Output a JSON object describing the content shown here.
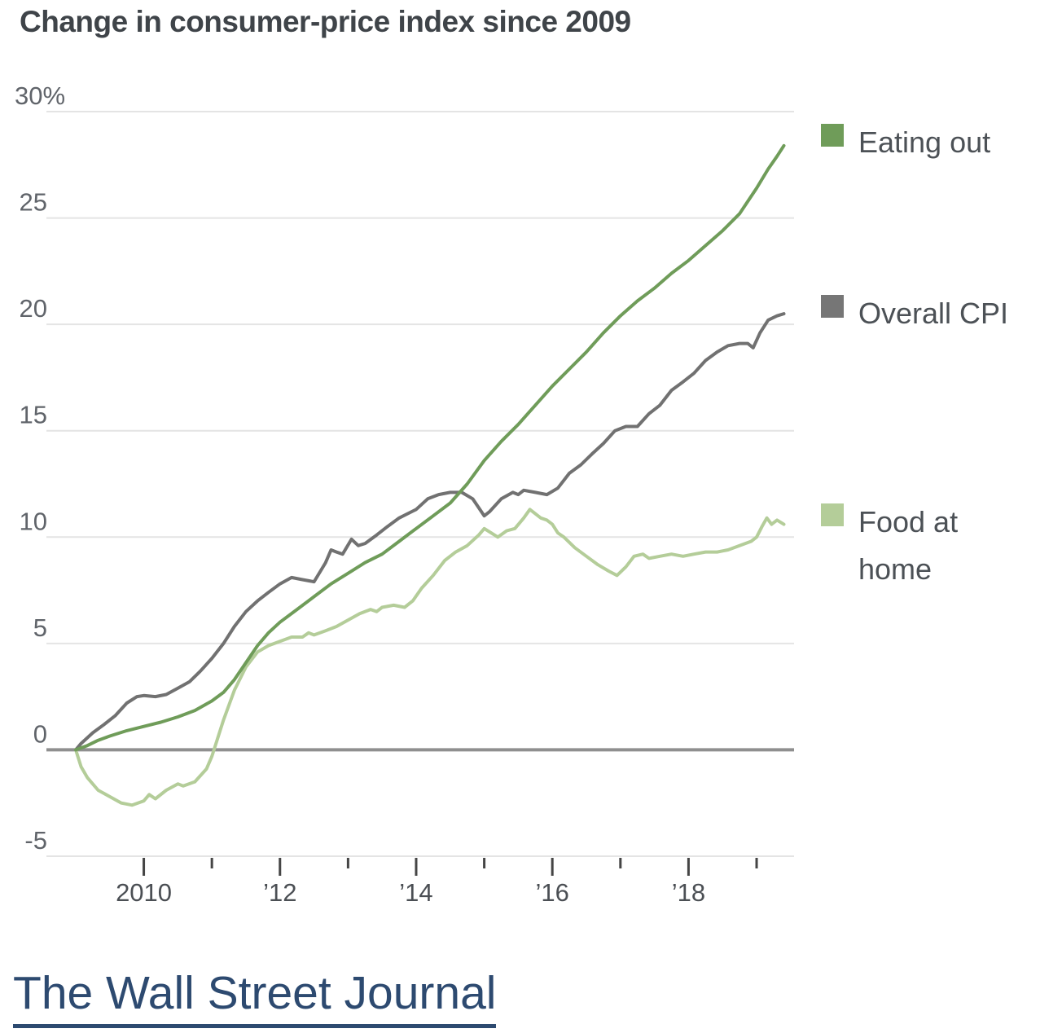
{
  "page": {
    "source_link_label": "The Wall Street Journal"
  },
  "legend": {
    "items": [
      {
        "label": "Eating out",
        "color": "#6f9c59"
      },
      {
        "label": "Overall CPI",
        "color": "#767676"
      },
      {
        "label": "Food at home",
        "color": "#b4cd99"
      }
    ]
  },
  "chart_data": {
    "type": "line",
    "title": "Change in consumer-price index since 2009",
    "xlabel": "",
    "ylabel": "",
    "xlim": [
      2008.57,
      2019.55
    ],
    "ylim": [
      -5,
      30
    ],
    "grid": true,
    "legend_position": "right",
    "gridline_color": "#e4e4e4",
    "zero_line_color": "#8f8f8f",
    "tick_color": "#454545",
    "yticks": [
      {
        "value": 30,
        "label": "30%"
      },
      {
        "value": 25,
        "label": "25"
      },
      {
        "value": 20,
        "label": "20"
      },
      {
        "value": 15,
        "label": "15"
      },
      {
        "value": 10,
        "label": "10"
      },
      {
        "value": 5,
        "label": "5"
      },
      {
        "value": 0,
        "label": "0"
      },
      {
        "value": -5,
        "label": "-5"
      }
    ],
    "xticks": [
      {
        "value": 2010,
        "label": "2010",
        "major": true
      },
      {
        "value": 2011,
        "label": "",
        "major": false
      },
      {
        "value": 2012,
        "label": "’12",
        "major": true
      },
      {
        "value": 2013,
        "label": "",
        "major": false
      },
      {
        "value": 2014,
        "label": "’14",
        "major": true
      },
      {
        "value": 2015,
        "label": "",
        "major": false
      },
      {
        "value": 2016,
        "label": "’16",
        "major": true
      },
      {
        "value": 2017,
        "label": "",
        "major": false
      },
      {
        "value": 2018,
        "label": "’18",
        "major": true
      },
      {
        "value": 2019,
        "label": "",
        "major": false
      }
    ],
    "series": [
      {
        "name": "Eating out",
        "color": "#6f9c59",
        "points": [
          [
            2009.0,
            0
          ],
          [
            2009.17,
            0.2
          ],
          [
            2009.33,
            0.45
          ],
          [
            2009.5,
            0.65
          ],
          [
            2009.75,
            0.9
          ],
          [
            2010.0,
            1.1
          ],
          [
            2010.25,
            1.3
          ],
          [
            2010.5,
            1.55
          ],
          [
            2010.75,
            1.85
          ],
          [
            2011.0,
            2.3
          ],
          [
            2011.17,
            2.7
          ],
          [
            2011.33,
            3.3
          ],
          [
            2011.5,
            4.1
          ],
          [
            2011.67,
            4.9
          ],
          [
            2011.83,
            5.5
          ],
          [
            2012.0,
            6.0
          ],
          [
            2012.25,
            6.6
          ],
          [
            2012.5,
            7.2
          ],
          [
            2012.75,
            7.8
          ],
          [
            2013.0,
            8.3
          ],
          [
            2013.25,
            8.8
          ],
          [
            2013.5,
            9.2
          ],
          [
            2013.75,
            9.8
          ],
          [
            2014.0,
            10.4
          ],
          [
            2014.25,
            11.0
          ],
          [
            2014.5,
            11.6
          ],
          [
            2014.75,
            12.5
          ],
          [
            2015.0,
            13.6
          ],
          [
            2015.25,
            14.5
          ],
          [
            2015.5,
            15.3
          ],
          [
            2015.75,
            16.2
          ],
          [
            2016.0,
            17.1
          ],
          [
            2016.25,
            17.9
          ],
          [
            2016.5,
            18.7
          ],
          [
            2016.75,
            19.6
          ],
          [
            2017.0,
            20.4
          ],
          [
            2017.25,
            21.1
          ],
          [
            2017.5,
            21.7
          ],
          [
            2017.75,
            22.4
          ],
          [
            2018.0,
            23.0
          ],
          [
            2018.25,
            23.7
          ],
          [
            2018.5,
            24.4
          ],
          [
            2018.75,
            25.2
          ],
          [
            2019.0,
            26.4
          ],
          [
            2019.17,
            27.3
          ],
          [
            2019.3,
            27.9
          ],
          [
            2019.4,
            28.4
          ]
        ]
      },
      {
        "name": "Overall CPI",
        "color": "#717171",
        "points": [
          [
            2009.0,
            0
          ],
          [
            2009.08,
            0.3
          ],
          [
            2009.25,
            0.8
          ],
          [
            2009.42,
            1.2
          ],
          [
            2009.58,
            1.6
          ],
          [
            2009.75,
            2.2
          ],
          [
            2009.9,
            2.5
          ],
          [
            2010.0,
            2.55
          ],
          [
            2010.17,
            2.5
          ],
          [
            2010.33,
            2.6
          ],
          [
            2010.5,
            2.9
          ],
          [
            2010.67,
            3.2
          ],
          [
            2010.83,
            3.7
          ],
          [
            2011.0,
            4.3
          ],
          [
            2011.17,
            5.0
          ],
          [
            2011.33,
            5.8
          ],
          [
            2011.5,
            6.5
          ],
          [
            2011.67,
            7.0
          ],
          [
            2011.83,
            7.4
          ],
          [
            2012.0,
            7.8
          ],
          [
            2012.17,
            8.1
          ],
          [
            2012.33,
            8.0
          ],
          [
            2012.5,
            7.9
          ],
          [
            2012.67,
            8.8
          ],
          [
            2012.75,
            9.4
          ],
          [
            2012.83,
            9.3
          ],
          [
            2012.92,
            9.2
          ],
          [
            2013.05,
            9.9
          ],
          [
            2013.15,
            9.6
          ],
          [
            2013.25,
            9.7
          ],
          [
            2013.42,
            10.1
          ],
          [
            2013.58,
            10.5
          ],
          [
            2013.75,
            10.9
          ],
          [
            2014.0,
            11.3
          ],
          [
            2014.17,
            11.8
          ],
          [
            2014.33,
            12.0
          ],
          [
            2014.5,
            12.1
          ],
          [
            2014.67,
            12.1
          ],
          [
            2014.83,
            11.8
          ],
          [
            2015.0,
            11.0
          ],
          [
            2015.08,
            11.2
          ],
          [
            2015.25,
            11.8
          ],
          [
            2015.42,
            12.1
          ],
          [
            2015.5,
            12.0
          ],
          [
            2015.58,
            12.2
          ],
          [
            2015.75,
            12.1
          ],
          [
            2015.92,
            12.0
          ],
          [
            2016.08,
            12.3
          ],
          [
            2016.25,
            13.0
          ],
          [
            2016.42,
            13.4
          ],
          [
            2016.58,
            13.9
          ],
          [
            2016.75,
            14.4
          ],
          [
            2016.92,
            15.0
          ],
          [
            2017.08,
            15.2
          ],
          [
            2017.25,
            15.2
          ],
          [
            2017.42,
            15.8
          ],
          [
            2017.58,
            16.2
          ],
          [
            2017.75,
            16.9
          ],
          [
            2017.92,
            17.3
          ],
          [
            2018.08,
            17.7
          ],
          [
            2018.25,
            18.3
          ],
          [
            2018.42,
            18.7
          ],
          [
            2018.58,
            19.0
          ],
          [
            2018.75,
            19.1
          ],
          [
            2018.87,
            19.1
          ],
          [
            2018.95,
            18.9
          ],
          [
            2019.05,
            19.6
          ],
          [
            2019.17,
            20.2
          ],
          [
            2019.3,
            20.4
          ],
          [
            2019.4,
            20.5
          ]
        ]
      },
      {
        "name": "Food at home",
        "color": "#b4cd99",
        "points": [
          [
            2009.0,
            0
          ],
          [
            2009.08,
            -0.8
          ],
          [
            2009.17,
            -1.3
          ],
          [
            2009.33,
            -1.9
          ],
          [
            2009.5,
            -2.2
          ],
          [
            2009.67,
            -2.5
          ],
          [
            2009.83,
            -2.6
          ],
          [
            2010.0,
            -2.4
          ],
          [
            2010.08,
            -2.1
          ],
          [
            2010.17,
            -2.3
          ],
          [
            2010.33,
            -1.9
          ],
          [
            2010.5,
            -1.6
          ],
          [
            2010.58,
            -1.7
          ],
          [
            2010.75,
            -1.5
          ],
          [
            2010.92,
            -0.9
          ],
          [
            2011.0,
            -0.3
          ],
          [
            2011.08,
            0.5
          ],
          [
            2011.17,
            1.4
          ],
          [
            2011.33,
            2.8
          ],
          [
            2011.5,
            3.9
          ],
          [
            2011.67,
            4.6
          ],
          [
            2011.83,
            4.9
          ],
          [
            2012.0,
            5.1
          ],
          [
            2012.17,
            5.3
          ],
          [
            2012.33,
            5.3
          ],
          [
            2012.42,
            5.5
          ],
          [
            2012.5,
            5.4
          ],
          [
            2012.67,
            5.6
          ],
          [
            2012.83,
            5.8
          ],
          [
            2013.0,
            6.1
          ],
          [
            2013.17,
            6.4
          ],
          [
            2013.33,
            6.6
          ],
          [
            2013.42,
            6.5
          ],
          [
            2013.5,
            6.7
          ],
          [
            2013.67,
            6.8
          ],
          [
            2013.83,
            6.7
          ],
          [
            2013.95,
            7.0
          ],
          [
            2014.08,
            7.6
          ],
          [
            2014.25,
            8.2
          ],
          [
            2014.42,
            8.9
          ],
          [
            2014.58,
            9.3
          ],
          [
            2014.75,
            9.6
          ],
          [
            2014.92,
            10.1
          ],
          [
            2015.0,
            10.4
          ],
          [
            2015.1,
            10.2
          ],
          [
            2015.2,
            10.0
          ],
          [
            2015.33,
            10.3
          ],
          [
            2015.45,
            10.4
          ],
          [
            2015.58,
            10.9
          ],
          [
            2015.67,
            11.3
          ],
          [
            2015.75,
            11.1
          ],
          [
            2015.83,
            10.9
          ],
          [
            2015.92,
            10.8
          ],
          [
            2016.0,
            10.6
          ],
          [
            2016.08,
            10.2
          ],
          [
            2016.17,
            10.0
          ],
          [
            2016.33,
            9.5
          ],
          [
            2016.5,
            9.1
          ],
          [
            2016.67,
            8.7
          ],
          [
            2016.83,
            8.4
          ],
          [
            2016.95,
            8.2
          ],
          [
            2017.08,
            8.6
          ],
          [
            2017.2,
            9.1
          ],
          [
            2017.33,
            9.2
          ],
          [
            2017.42,
            9.0
          ],
          [
            2017.58,
            9.1
          ],
          [
            2017.75,
            9.2
          ],
          [
            2017.92,
            9.1
          ],
          [
            2018.08,
            9.2
          ],
          [
            2018.25,
            9.3
          ],
          [
            2018.42,
            9.3
          ],
          [
            2018.58,
            9.4
          ],
          [
            2018.75,
            9.6
          ],
          [
            2018.92,
            9.8
          ],
          [
            2019.0,
            10.0
          ],
          [
            2019.08,
            10.5
          ],
          [
            2019.15,
            10.9
          ],
          [
            2019.22,
            10.6
          ],
          [
            2019.3,
            10.8
          ],
          [
            2019.4,
            10.6
          ]
        ]
      }
    ]
  }
}
